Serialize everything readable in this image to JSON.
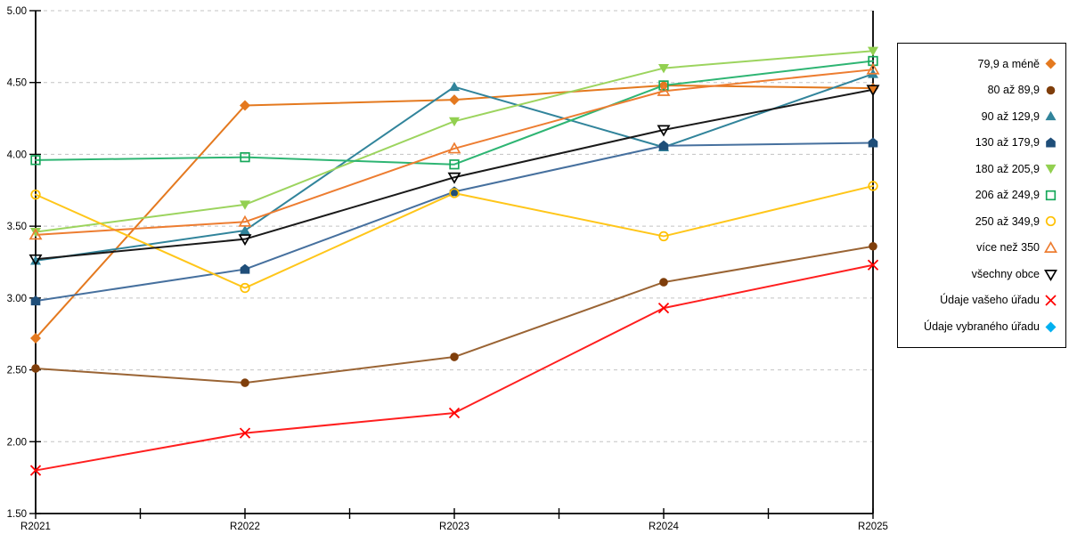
{
  "chart_data": {
    "type": "line",
    "title": "",
    "xlabel": "",
    "ylabel": "",
    "categories": [
      "R2021",
      "R2022",
      "R2023",
      "R2024",
      "R2025"
    ],
    "y_axis": {
      "min": 1.5,
      "max": 5.0,
      "step": 0.5,
      "tick_labels": [
        "5.00",
        "4.50",
        "4.00",
        "3.50",
        "3.00",
        "2.50",
        "2.00",
        "1.50"
      ]
    },
    "grid": {
      "horizontal": "dashed",
      "color": "#C3C3C3"
    },
    "legend_position": "right",
    "series": [
      {
        "name": "79,9 a méně",
        "marker": "diamond",
        "filled": true,
        "color": "#E4791F",
        "line_color": "#E4791F",
        "values": [
          2.72,
          4.34,
          4.38,
          4.48,
          4.46
        ]
      },
      {
        "name": "80 až 89,9",
        "marker": "circle",
        "filled": true,
        "color": "#7F3E0B",
        "line_color": "#9A6434",
        "values": [
          2.51,
          2.41,
          2.59,
          3.11,
          3.36
        ]
      },
      {
        "name": "90 až 129,9",
        "marker": "triangle-up",
        "filled": true,
        "color": "#31849B",
        "line_color": "#31849B",
        "values": [
          3.26,
          3.47,
          4.47,
          4.05,
          4.56
        ]
      },
      {
        "name": "130 až 179,9",
        "marker": "pentagon",
        "filled": true,
        "color": "#1F4E79",
        "line_color": "#46709E",
        "values": [
          2.98,
          3.2,
          3.74,
          4.06,
          4.08
        ]
      },
      {
        "name": "180 až 205,9",
        "marker": "triangle-down",
        "filled": true,
        "color": "#92D050",
        "line_color": "#9CD45E",
        "values": [
          3.46,
          3.65,
          4.23,
          4.6,
          4.72
        ]
      },
      {
        "name": "206 až 249,9",
        "marker": "square",
        "filled": false,
        "color": "#17A85B",
        "line_color": "#2EB573",
        "values": [
          3.96,
          3.98,
          3.93,
          4.48,
          4.65
        ]
      },
      {
        "name": "250 až 349,9",
        "marker": "circle",
        "filled": false,
        "color": "#FFC000",
        "line_color": "#FFC61A",
        "values": [
          3.72,
          3.07,
          3.73,
          3.43,
          3.78
        ]
      },
      {
        "name": "více než 350",
        "marker": "triangle-up",
        "filled": false,
        "color": "#ED7D31",
        "line_color": "#ED7D31",
        "values": [
          3.44,
          3.53,
          4.04,
          4.44,
          4.59
        ]
      },
      {
        "name": "všechny obce",
        "marker": "triangle-down",
        "filled": false,
        "color": "#000000",
        "line_color": "#1A1A1A",
        "values": [
          3.27,
          3.41,
          3.84,
          4.17,
          4.45
        ]
      },
      {
        "name": "Údaje vašeho úřadu",
        "marker": "x",
        "filled": false,
        "color": "#FF0000",
        "line_color": "#FF1F1F",
        "values": [
          1.8,
          2.06,
          2.2,
          2.93,
          3.23
        ]
      },
      {
        "name": "Údaje vybraného úřadu",
        "marker": "diamond",
        "filled": true,
        "color": "#00B0F0",
        "line_color": "#00B0F0",
        "values": [
          null,
          null,
          null,
          null,
          null
        ]
      }
    ]
  },
  "colors": {
    "axis": "#000000",
    "gridline": "#C3C3C3",
    "background": "#FFFFFF"
  }
}
